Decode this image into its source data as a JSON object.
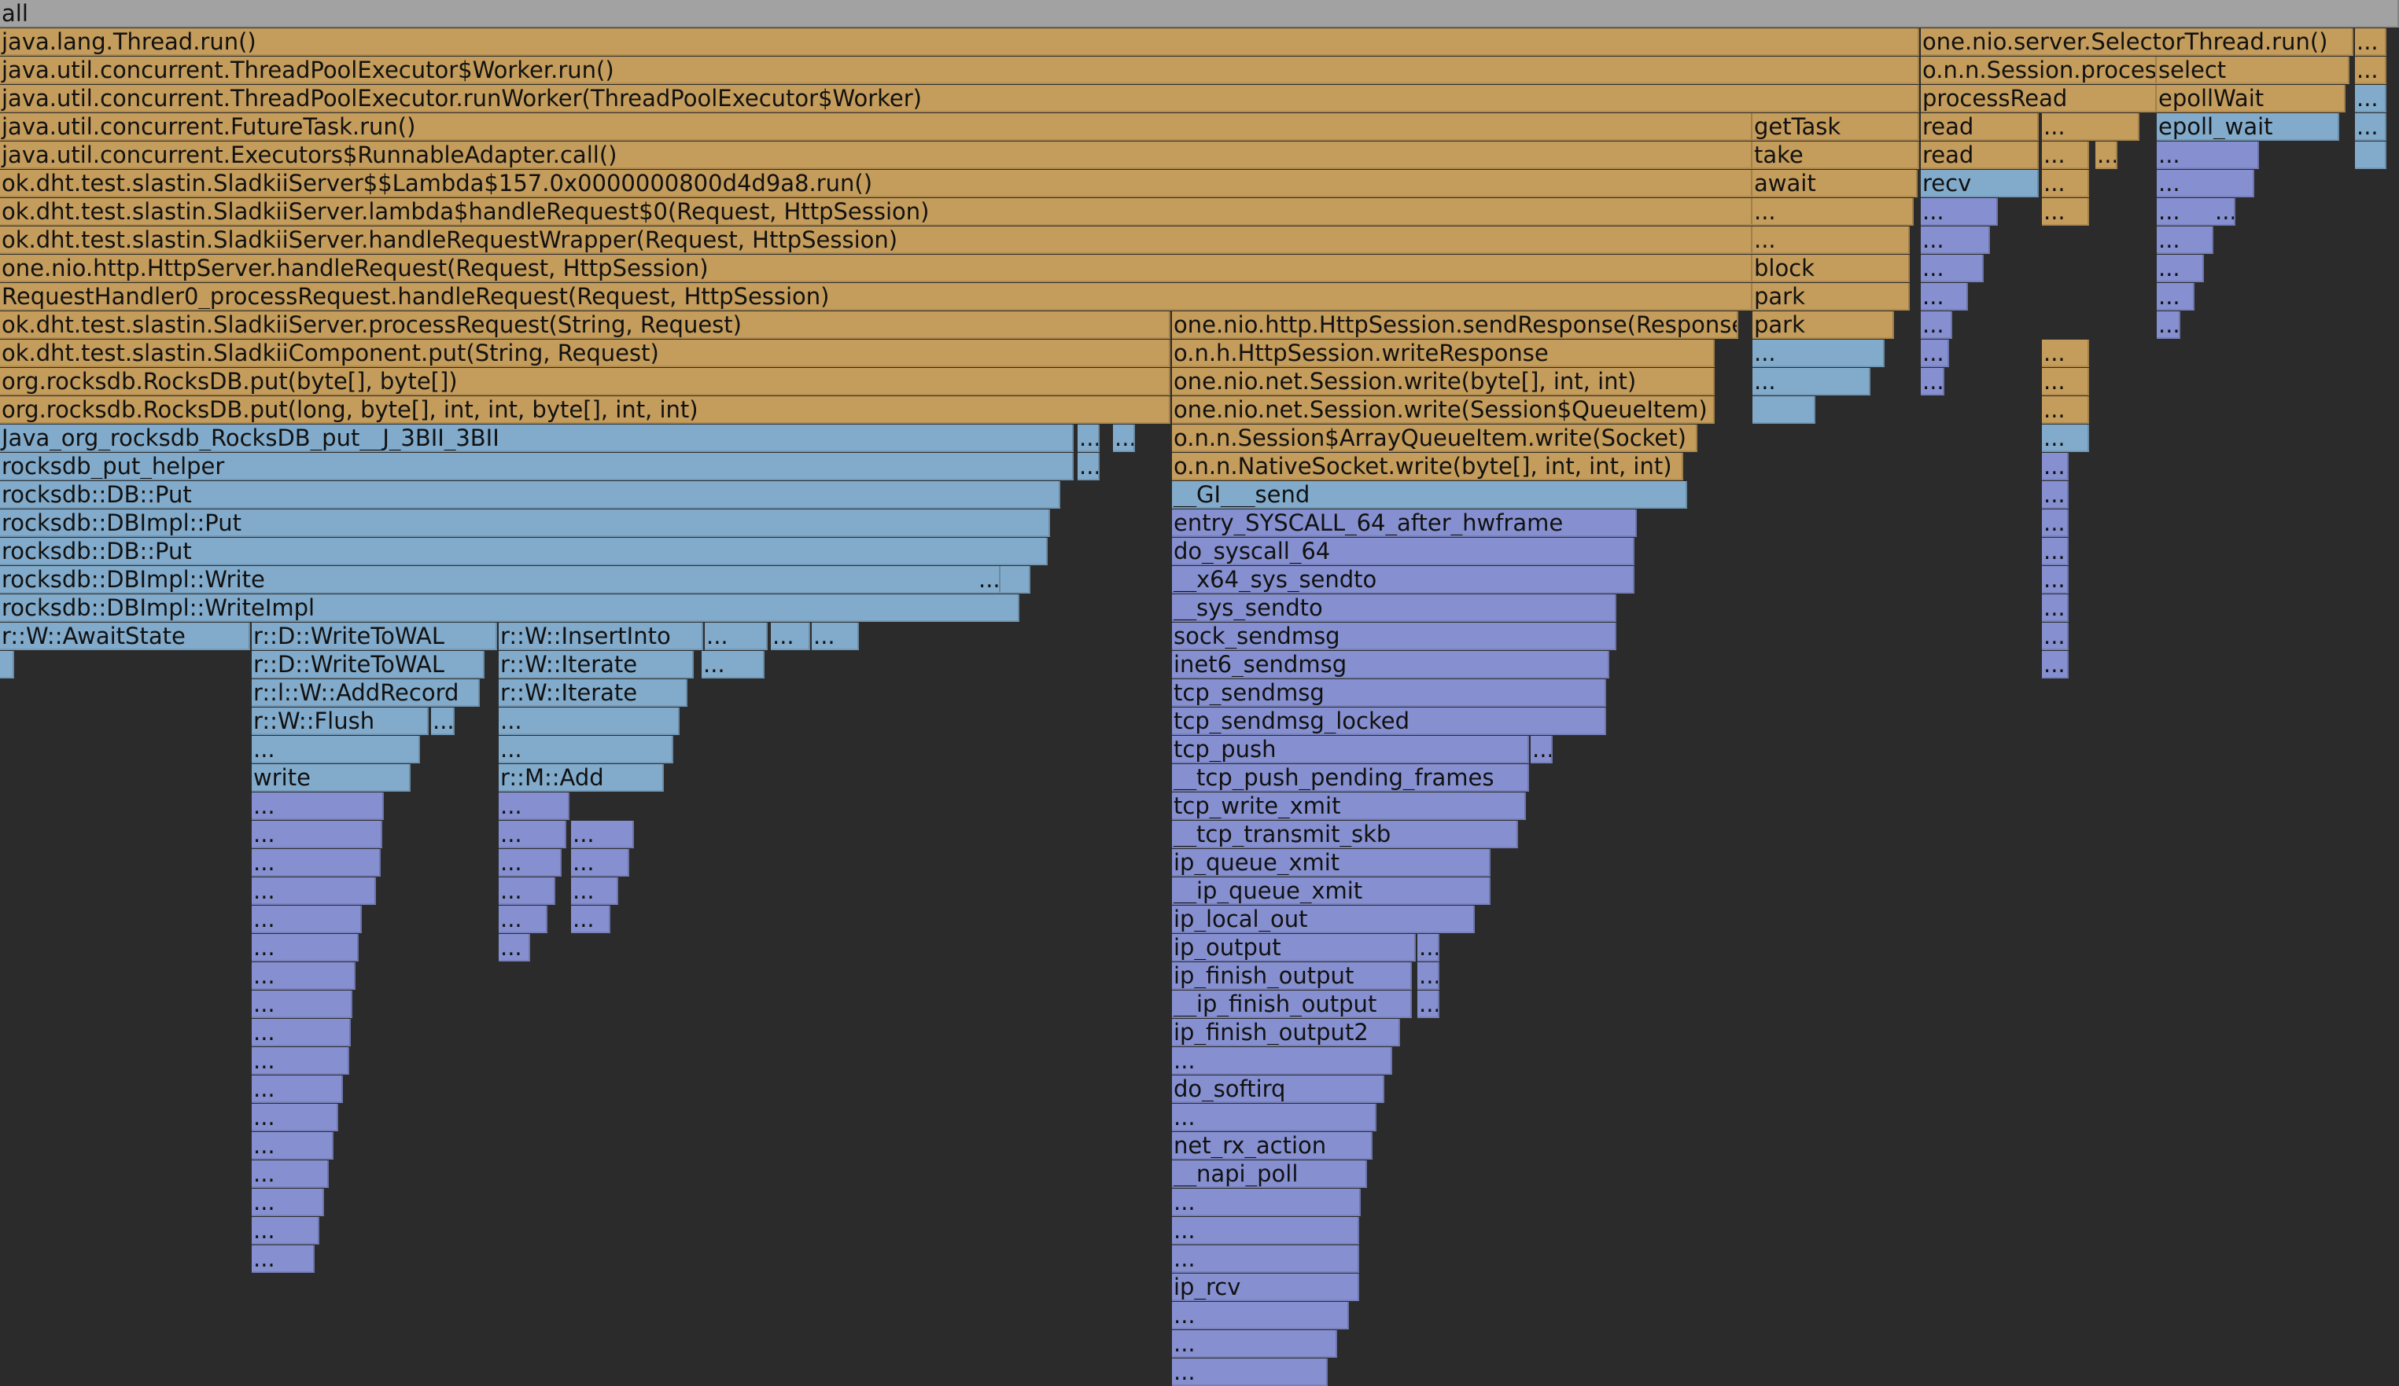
{
  "title": "all",
  "colors": {
    "background": "#2b2b2b",
    "root": "#a2a2a2",
    "java": "#c49c5b",
    "native": "#82abcb",
    "kernel": "#8690d0"
  },
  "labels": [
    "all",
    "java.lang.Thread.run()",
    "java.util.concurrent.ThreadPoolExecutor$Worker.run()",
    "java.util.concurrent.ThreadPoolExecutor.runWorker(ThreadPoolExecutor$Worker)",
    "java.util.concurrent.FutureTask.run()",
    "java.util.concurrent.Executors$RunnableAdapter.call()",
    "ok.dht.test.slastin.SladkiiServer$$Lambda$157.0x0000000800d4d9a8.run()",
    "ok.dht.test.slastin.SladkiiServer.lambda$handleRequest$0(Request, HttpSession)",
    "ok.dht.test.slastin.SladkiiServer.handleRequestWrapper(Request, HttpSession)",
    "one.nio.http.HttpServer.handleRequest(Request, HttpSession)",
    "RequestHandler0_processRequest.handleRequest(Request, HttpSession)",
    "ok.dht.test.slastin.SladkiiServer.processRequest(String, Request)",
    "ok.dht.test.slastin.SladkiiComponent.put(String, Request)",
    "org.rocksdb.RocksDB.put(byte[], byte[])",
    "org.rocksdb.RocksDB.put(long, byte[], int, int, byte[], int, int)",
    "Java_org_rocksdb_RocksDB_put__J_3BII_3BII",
    "rocksdb_put_helper",
    "rocksdb::DB::Put",
    "rocksdb::DBImpl::Put",
    "rocksdb::DB::Put",
    "rocksdb::DBImpl::Write",
    "rocksdb::DBImpl::WriteImpl",
    "r::W::AwaitState",
    "r::D::WriteToWAL",
    "r::W::InsertInto",
    "r::D::WriteToWAL",
    "r::W::Iterate",
    "r::l::W::AddRecord",
    "r::W::Iterate",
    "r::W::Flush",
    "write",
    "r::M::Add",
    "one.nio.http.HttpSession.sendResponse(Response)",
    "o.n.h.HttpSession.writeResponse",
    "one.nio.net.Session.write(byte[], int, int)",
    "one.nio.net.Session.write(Session$QueueItem)",
    "o.n.n.Session$ArrayQueueItem.write(Socket)",
    "o.n.n.NativeSocket.write(byte[], int, int, int)",
    "__GI___send",
    "entry_SYSCALL_64_after_hwframe",
    "do_syscall_64",
    "__x64_sys_sendto",
    "__sys_sendto",
    "sock_sendmsg",
    "inet6_sendmsg",
    "tcp_sendmsg",
    "tcp_sendmsg_locked",
    "tcp_push",
    "__tcp_push_pending_frames",
    "tcp_write_xmit",
    "__tcp_transmit_skb",
    "ip_queue_xmit",
    "__ip_queue_xmit",
    "ip_local_out",
    "ip_output",
    "ip_finish_output",
    "__ip_finish_output",
    "ip_finish_output2",
    "...",
    "do_softirq",
    "net_rx_action",
    "__napi_poll",
    "ip_rcv",
    "getTask",
    "take",
    "await",
    "block",
    "park",
    "one.nio.server.SelectorThread.run()",
    "o.n.n.Session.process",
    "select",
    "processRead",
    "epollWait",
    "read",
    "epoll_wait",
    "recv"
  ]
}
